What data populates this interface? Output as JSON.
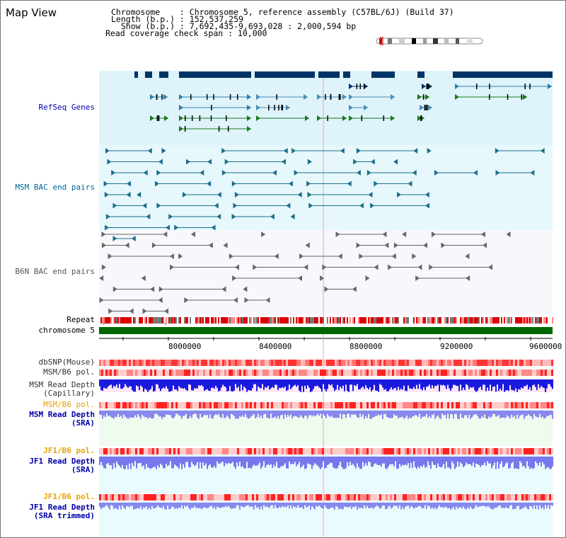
{
  "title": "Map View",
  "info": {
    "line1": "Chromosome    : Chromosome 5, reference assembly (C57BL/6J) (Build 37)",
    "line2": "Length (b.p.) : 152,537,259",
    "line3": "  Show (b.p.) : 7,692,435-9,693,028 : 2,000,594 bp",
    "line4": "Read coverage check span : 10,000"
  },
  "tracks": {
    "refseq": "RefSeq Genes",
    "msm_bac": "MSM BAC end pairs",
    "b6n_bac": "B6N BAC end pairs",
    "repeat": "Repeat",
    "chromosome": "chromosome 5",
    "dbsnp": "dbSNP(Mouse)",
    "msm_b6_pol_a": "MSM/B6 pol.",
    "msm_depth_cap_1": "MSM Read Depth",
    "msm_depth_cap_2": "(Capillary)",
    "msm_b6_pol_b": "MSM/B6 pol.",
    "msm_depth_sra_1": "MSM Read Depth",
    "msm_depth_sra_2": "(SRA)",
    "jf1_pol_a": "JF1/B6 pol.",
    "jf1_depth_sra_1": "JF1 Read Depth",
    "jf1_depth_sra_2": "(SRA)",
    "jf1_pol_b": "JF1/B6 pol.",
    "jf1_depth_trim_1": "JF1 Read Depth",
    "jf1_depth_trim_2": "(SRA trimmed)"
  },
  "ruler": {
    "ticks": [
      "8000000",
      "8400000",
      "8800000",
      "9200000",
      "9600000"
    ]
  },
  "colors": {
    "refseq_bg": "#dff3fb",
    "msm_bg": "#e6f8fb",
    "b6n_bg": "#f5f5ff",
    "label_blue": "#0000aa",
    "label_teal": "#006699",
    "label_gray": "#555555",
    "label_orange": "#e8a000",
    "chromosome_green": "#006600"
  }
}
